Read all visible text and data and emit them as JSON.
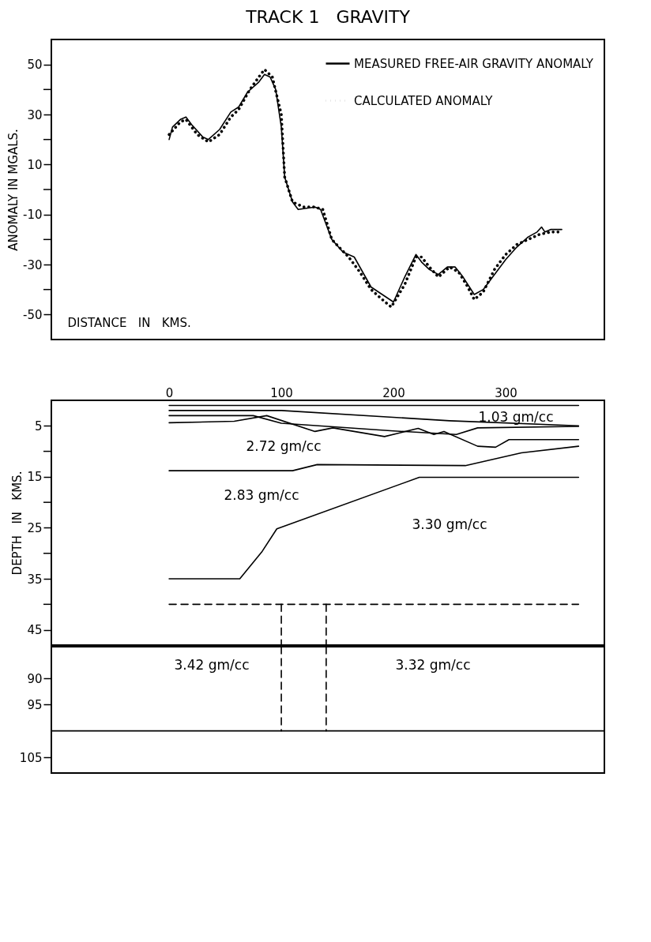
{
  "chart_data": [
    {
      "type": "line",
      "title": "TRACK 1   GRAVITY",
      "xlabel": "DISTANCE   IN   KMS.",
      "ylabel": "ANOMALY IN MGALS.",
      "xlim": [
        -105,
        388
      ],
      "xticks": [
        0,
        100,
        200,
        300
      ],
      "ylim": [
        -60,
        60
      ],
      "yticks": [
        50,
        {
          "value": 40,
          "label": null
        },
        30,
        {
          "value": 20,
          "label": null
        },
        10,
        {
          "value": 0,
          "label": null
        },
        -10,
        {
          "value": -20,
          "label": null
        },
        -30,
        {
          "value": -40,
          "label": null
        },
        -50
      ],
      "legend": "top right",
      "marker": "none",
      "grid": false,
      "series": [
        {
          "name": "MEASURED FREE-AIR GRAVITY ANOMALY",
          "color": "#000000",
          "line_style": "solid",
          "x": [
            0,
            3,
            10,
            15,
            20,
            30,
            35,
            45,
            55,
            62,
            70,
            80,
            85,
            90,
            95,
            100,
            103,
            110,
            115,
            130,
            135,
            145,
            155,
            165,
            180,
            190,
            200,
            210,
            220,
            225,
            232,
            240,
            248,
            255,
            262,
            272,
            280,
            290,
            300,
            310,
            320,
            328,
            332,
            335,
            340,
            350
          ],
          "values": [
            20,
            25,
            28,
            29,
            26,
            21,
            20,
            24,
            31,
            33,
            39,
            43,
            46,
            45,
            40,
            25,
            5,
            -5,
            -8,
            -7,
            -8,
            -20,
            -25,
            -27,
            -39,
            -42,
            -45,
            -35,
            -26,
            -29,
            -32,
            -34,
            -31,
            -31,
            -35,
            -42,
            -40,
            -34,
            -28,
            -23,
            -19,
            -17,
            -15,
            -17,
            -16,
            -16
          ]
        },
        {
          "name": "CALCULATED ANOMALY",
          "color": "#000000",
          "line_style": "dotted",
          "x": [
            0,
            10,
            15,
            25,
            35,
            45,
            55,
            62,
            72,
            80,
            85,
            92,
            100,
            103,
            110,
            120,
            130,
            137,
            145,
            160,
            170,
            180,
            190,
            198,
            210,
            220,
            225,
            232,
            240,
            250,
            258,
            265,
            272,
            280,
            290,
            300,
            310,
            320,
            330,
            340,
            350
          ],
          "values": [
            22,
            27,
            28,
            22,
            19,
            22,
            29,
            32,
            40,
            45,
            48,
            45,
            30,
            5,
            -5,
            -7,
            -7,
            -8,
            -20,
            -27,
            -33,
            -40,
            -44,
            -47,
            -38,
            -27,
            -27,
            -31,
            -35,
            -31,
            -33,
            -38,
            -44,
            -41,
            -32,
            -26,
            -22,
            -20,
            -18,
            -17,
            -17
          ]
        }
      ]
    },
    {
      "type": "line",
      "ylabel": "DEPTH   IN   KMS.",
      "xlim": [
        -105,
        388
      ],
      "ylim": [
        48,
        0
      ],
      "yticks": [
        5,
        {
          "value": 10,
          "label": null
        },
        15,
        {
          "value": 20,
          "label": null
        },
        25,
        {
          "value": 30,
          "label": null
        },
        35,
        {
          "value": 40,
          "label": null
        },
        45
      ],
      "tick_labels": "y",
      "legend": false,
      "marker": "none",
      "grid": false,
      "series": [
        {
          "color": "#000000",
          "line_style": "solid",
          "x": [
            0,
            365
          ],
          "values": [
            1,
            1
          ]
        },
        {
          "color": "#000000",
          "line_style": "solid",
          "x": [
            0,
            100,
            250,
            365
          ],
          "values": [
            2,
            2,
            4,
            5
          ]
        },
        {
          "color": "#000000",
          "line_style": "solid",
          "x": [
            0,
            75,
            100,
            200,
            256,
            275,
            365
          ],
          "values": [
            3,
            3,
            4.5,
            6,
            6.7,
            5.4,
            5.1
          ]
        },
        {
          "color": "#000000",
          "line_style": "solid",
          "x": [
            0,
            58,
            87,
            130,
            146,
            192,
            222,
            236,
            245,
            275,
            291,
            303,
            365
          ],
          "values": [
            4.4,
            4.1,
            3,
            6.1,
            5.4,
            7.1,
            5.5,
            6.7,
            6.1,
            9,
            9.2,
            7.7,
            7.7
          ]
        },
        {
          "color": "#000000",
          "line_style": "solid",
          "x": [
            0,
            110,
            132,
            264,
            314,
            365
          ],
          "values": [
            13.8,
            13.8,
            12.6,
            12.8,
            10.3,
            9
          ]
        },
        {
          "color": "#000000",
          "line_style": "solid",
          "x": [
            0,
            63,
            83,
            96,
            223,
            365
          ],
          "values": [
            35,
            35,
            29.6,
            25.2,
            15.1,
            15.1
          ]
        },
        {
          "color": "#000000",
          "line_style": "dashed",
          "x": [
            0,
            365
          ],
          "values": [
            40,
            40
          ]
        },
        {
          "color": "#000000",
          "line_style": "dashed",
          "x": [
            100,
            100
          ],
          "values": [
            40,
            48
          ]
        },
        {
          "color": "#000000",
          "line_style": "dashed",
          "x": [
            140,
            140
          ],
          "values": [
            40,
            48
          ]
        }
      ],
      "annotations": [
        "1.03 gm/cc",
        "2.72 gm/cc",
        "2.83 gm/cc",
        "3.30 gm/cc"
      ]
    },
    {
      "type": "line",
      "xlim": [
        -105,
        388
      ],
      "ylim": [
        108,
        84
      ],
      "yticks": [
        90,
        95,
        105
      ],
      "tick_labels": "y",
      "legend": false,
      "marker": "none",
      "grid": false,
      "series": [
        {
          "color": "#000000",
          "line_style": "dashed",
          "x": [
            100,
            100
          ],
          "values": [
            84,
            100
          ]
        },
        {
          "color": "#000000",
          "line_style": "dashed",
          "x": [
            140,
            140
          ],
          "values": [
            84,
            100
          ]
        }
      ],
      "ref_lines": [
        {
          "axis": "y",
          "value": 100,
          "label": null,
          "color": "#000000",
          "line_style": "solid"
        }
      ],
      "annotations": [
        "3.42 gm/cc",
        "3.32 gm/cc"
      ]
    }
  ]
}
